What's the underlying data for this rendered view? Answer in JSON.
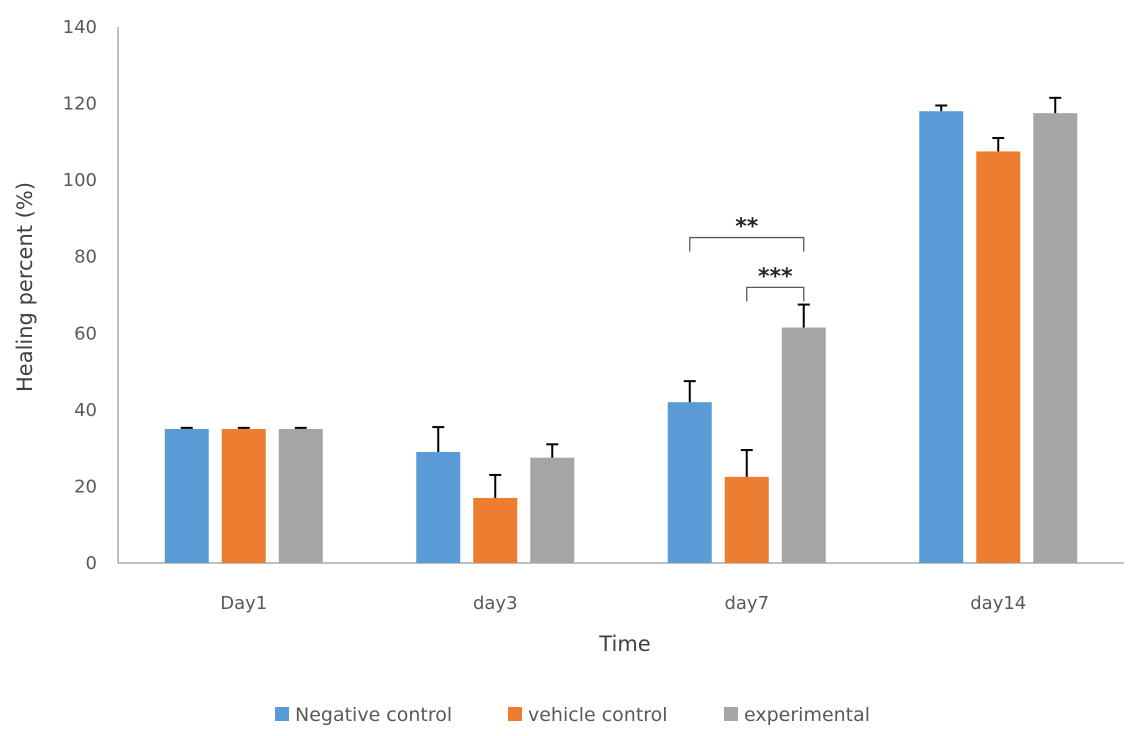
{
  "chart_data": {
    "type": "bar",
    "title": "",
    "xlabel": "Time",
    "ylabel": "Healing percent (%)",
    "ylim": [
      0,
      140
    ],
    "yticks": [
      "0",
      "20",
      "40",
      "60",
      "80",
      "100",
      "120",
      "140"
    ],
    "categories": [
      "Day1",
      "day3",
      "day7",
      "day14"
    ],
    "series": [
      {
        "name": "Negative control",
        "color": "#5B9BD5",
        "values": [
          35,
          29,
          42,
          118
        ],
        "errors": [
          0.3,
          6.5,
          5.5,
          1.5
        ]
      },
      {
        "name": "vehicle control",
        "color": "#ED7D31",
        "values": [
          35,
          17,
          22.5,
          107.5
        ],
        "errors": [
          0.3,
          6,
          7,
          3.5
        ]
      },
      {
        "name": "experimental",
        "color": "#A5A5A5",
        "values": [
          35,
          27.5,
          61.5,
          117.5
        ],
        "errors": [
          0.3,
          3.5,
          6,
          4
        ]
      }
    ],
    "annotations": [
      {
        "label": "**",
        "category": "day7",
        "from_series": 0,
        "to_series": 2,
        "level": 85
      },
      {
        "label": "***",
        "category": "day7",
        "from_series": 1,
        "to_series": 2,
        "level": 72
      }
    ],
    "grid": false,
    "legend_position": "bottom"
  }
}
